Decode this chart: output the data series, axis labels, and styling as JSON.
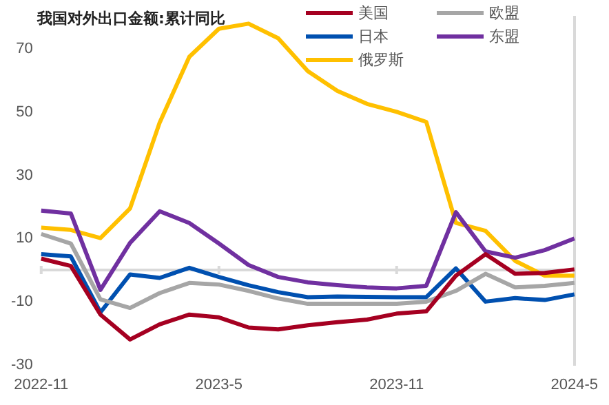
{
  "chart_data": {
    "type": "line",
    "title": "我国对外出口金额:累计同比",
    "categories": [
      "2022-11",
      null,
      null,
      null,
      null,
      null,
      "2023-5",
      null,
      null,
      null,
      null,
      null,
      "2023-11",
      null,
      null,
      null,
      null,
      null,
      "2024-5"
    ],
    "series": [
      {
        "name": "美国",
        "color": "#a50021",
        "values": [
          3.6,
          1.3,
          -14.1,
          -22,
          -17.2,
          -14.1,
          -15,
          -18.2,
          -18.8,
          -17.5,
          -16.5,
          -15.7,
          -13.8,
          -13.1,
          -1.8,
          5,
          -1.2,
          -0.9,
          0.2
        ]
      },
      {
        "name": "欧盟",
        "color": "#a6a6a6",
        "values": [
          11.4,
          8.4,
          -9.3,
          -12,
          -7.3,
          -4.1,
          -4.6,
          -6.6,
          -9,
          -10.7,
          -10.7,
          -10.7,
          -10.7,
          -10,
          -6.6,
          -1.2,
          -5.5,
          -5,
          -4.1
        ]
      },
      {
        "name": "日本",
        "color": "#0050b0",
        "values": [
          5,
          4.3,
          -13.4,
          -1.4,
          -2.5,
          0.7,
          -2.2,
          -4.8,
          -7,
          -8.6,
          -8.4,
          -8.5,
          -8.6,
          -8.6,
          0.5,
          -10,
          -8.9,
          -9.5,
          -7.7
        ]
      },
      {
        "name": "东盟",
        "color": "#7030a0",
        "values": [
          18.8,
          17.9,
          -6.3,
          8.6,
          18.6,
          14.9,
          8.4,
          1.6,
          -2.2,
          -3.9,
          -4.8,
          -5.5,
          -5.8,
          -5,
          18.3,
          5.9,
          3.9,
          6.3,
          10
        ]
      },
      {
        "name": "俄罗斯",
        "color": "#ffc000",
        "values": [
          13.4,
          12.7,
          10.1,
          19.5,
          46.7,
          67.5,
          76.4,
          78,
          73.4,
          63,
          56.7,
          52.6,
          50.1,
          46.9,
          14.9,
          12.4,
          2.9,
          -1.8,
          -1.8
        ]
      }
    ],
    "ylim": [
      -30,
      80
    ],
    "yticks": [
      -30,
      -10,
      10,
      30,
      50,
      70
    ],
    "ref_lines": [
      {
        "axis": "y",
        "value": 0,
        "color": "#d9d9d9"
      }
    ],
    "grid": false,
    "legend": "top right",
    "marker": "none",
    "line_style": "solid"
  }
}
